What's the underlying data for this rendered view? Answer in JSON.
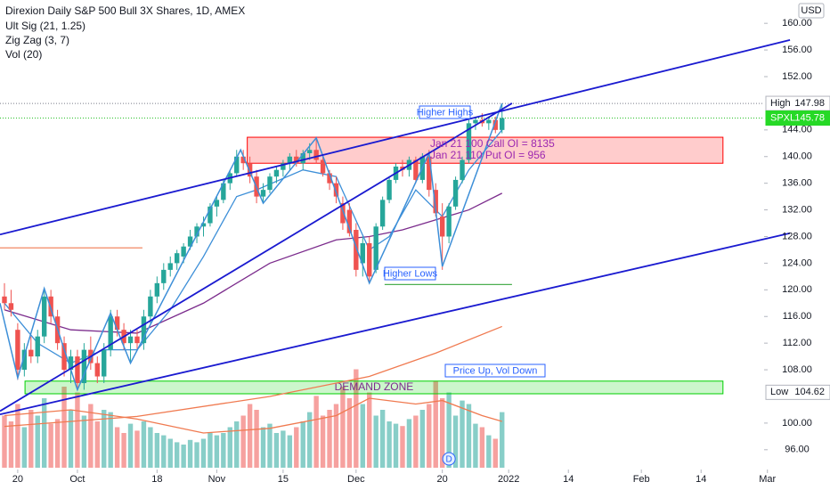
{
  "chart_data": {
    "type": "candlestick",
    "title": "Direxion Daily S&P 500 Bull 3X Shares, 1D, AMEX",
    "indicators": [
      "Ult Sig (21, 1.25)",
      "Zig Zag (3, 7)",
      "Vol (20)"
    ],
    "currency": "USD",
    "up_color": "#26a69a",
    "down_color": "#ef5350",
    "open": [
      119,
      118,
      114,
      108,
      111,
      110,
      113,
      119,
      116,
      112,
      108,
      110,
      106,
      111,
      109,
      107,
      111,
      116,
      114,
      112,
      113,
      112,
      116,
      119,
      121,
      123,
      124,
      125,
      126.5,
      128,
      129.5,
      130,
      132.5,
      133.5,
      136,
      137.5,
      140,
      139,
      137,
      134,
      135,
      137,
      138,
      139,
      140,
      139,
      140.5,
      141,
      139.5,
      137.5,
      136,
      133,
      132,
      129,
      124,
      127,
      123,
      129.5,
      133.5,
      136.5,
      138.5,
      138,
      139.5,
      136.5,
      140,
      135,
      131,
      128,
      132.5,
      136.5,
      139.5,
      145,
      145.5,
      145,
      145.5,
      144
    ],
    "high": [
      121,
      120,
      115,
      112,
      113,
      114,
      120,
      120,
      117,
      113,
      111,
      111,
      112,
      113,
      110,
      112,
      117,
      117,
      115,
      114,
      114,
      117,
      120,
      122,
      124,
      125,
      126,
      127,
      129,
      130,
      131,
      133,
      134,
      136.5,
      138,
      141,
      141,
      140,
      138,
      136,
      137.5,
      138.5,
      139.5,
      140.5,
      141,
      141,
      142,
      143,
      140,
      138,
      137,
      134,
      133,
      130,
      128,
      128,
      130,
      134,
      137,
      139,
      139.5,
      140,
      140,
      140.5,
      141,
      136,
      133,
      133,
      137,
      140,
      145.5,
      146,
      146.5,
      146,
      146,
      147.98
    ],
    "low": [
      117,
      116,
      106.5,
      107,
      109,
      109,
      112,
      115,
      111,
      107,
      106,
      105,
      105,
      108,
      106,
      106,
      110,
      113,
      111,
      109,
      111,
      111,
      115,
      118,
      120,
      122,
      123,
      124,
      126,
      127,
      128,
      129.5,
      131,
      133,
      135,
      137,
      138,
      136,
      133,
      133,
      134.5,
      136,
      137,
      138,
      138.5,
      138,
      139.5,
      139,
      137,
      135,
      133,
      129,
      128,
      122,
      122,
      121,
      122.5,
      129,
      133,
      136,
      137,
      137,
      136,
      136,
      134,
      131,
      123,
      127,
      132,
      136,
      139,
      144,
      144.5,
      144,
      143.5,
      143.5
    ],
    "close": [
      118,
      117,
      108,
      111,
      110,
      113,
      119,
      116,
      112,
      108,
      110,
      106,
      111,
      109,
      107,
      111,
      116,
      114,
      112,
      113,
      112,
      116,
      119,
      121,
      123,
      124,
      125.5,
      126.5,
      128,
      129.5,
      130,
      132.5,
      133.5,
      136,
      137.5,
      140,
      139,
      137,
      134,
      135,
      137,
      138,
      139,
      140,
      139,
      140.5,
      141,
      139.5,
      137.5,
      136,
      134,
      130,
      128.5,
      123,
      127,
      122,
      129.5,
      133.5,
      136.5,
      138.5,
      138,
      139.5,
      136.5,
      140,
      135,
      131.5,
      128,
      132.5,
      136.5,
      139.5,
      145,
      145.5,
      145,
      145.5,
      144,
      145.78
    ],
    "volume": [
      45,
      40,
      55,
      35,
      50,
      45,
      60,
      38,
      42,
      70,
      50,
      65,
      45,
      55,
      40,
      50,
      48,
      35,
      30,
      38,
      32,
      40,
      35,
      30,
      28,
      25,
      22,
      20,
      24,
      22,
      25,
      30,
      28,
      30,
      35,
      40,
      45,
      55,
      50,
      35,
      38,
      30,
      32,
      28,
      35,
      40,
      48,
      62,
      45,
      50,
      55,
      70,
      60,
      85,
      55,
      65,
      45,
      50,
      40,
      38,
      36,
      42,
      45,
      50,
      55,
      75,
      60,
      65,
      45,
      58,
      55,
      38,
      35,
      28,
      25,
      48
    ],
    "vlim": [
      0,
      100
    ],
    "xlim": [
      -0.67,
      114.5
    ],
    "ylim": [
      93.3,
      163.5
    ],
    "yticks": [
      {
        "value": 160,
        "label": "160.00"
      },
      {
        "value": 156,
        "label": "156.00"
      },
      {
        "value": 152,
        "label": "152.00"
      },
      {
        "value": 144,
        "label": "144.00"
      },
      {
        "value": 140,
        "label": "140.00"
      },
      {
        "value": 136,
        "label": "136.00"
      },
      {
        "value": 132,
        "label": "132.00"
      },
      {
        "value": 128,
        "label": "128.00"
      },
      {
        "value": 124,
        "label": "124.00"
      },
      {
        "value": 120,
        "label": "120.00"
      },
      {
        "value": 116,
        "label": "116.00"
      },
      {
        "value": 112,
        "label": "112.00"
      },
      {
        "value": 108,
        "label": "108.00"
      },
      {
        "value": 100,
        "label": "100.00"
      },
      {
        "value": 96,
        "label": "96.00"
      }
    ],
    "xticks": [
      {
        "value": 2,
        "label": "20"
      },
      {
        "value": 11,
        "label": "Oct"
      },
      {
        "value": 23,
        "label": "18"
      },
      {
        "value": 32,
        "label": "Nov"
      },
      {
        "value": 42,
        "label": "15"
      },
      {
        "value": 53,
        "label": "Dec"
      },
      {
        "value": 66,
        "label": "20"
      },
      {
        "value": 76,
        "label": "2022"
      },
      {
        "value": 85,
        "label": "14"
      },
      {
        "value": 96,
        "label": "Feb"
      },
      {
        "value": 105,
        "label": "14"
      },
      {
        "value": 115,
        "label": "Mar"
      }
    ],
    "high_marker": {
      "label": "High",
      "value": 147.98
    },
    "last_marker": {
      "label": "SPXL",
      "value": 145.78
    },
    "low_marker": {
      "label": "Low",
      "value": 104.62
    },
    "trendlines": [
      {
        "color": "#1a1ad0",
        "points": [
          [
            -0.67,
            128.3
          ],
          [
            118.4,
            157.5
          ]
        ]
      },
      {
        "color": "#1a1ad0",
        "points": [
          [
            -0.67,
            101.3
          ],
          [
            118.4,
            128.5
          ]
        ]
      },
      {
        "color": "#1a1ad0",
        "points": [
          [
            -0.67,
            101.8
          ],
          [
            76.5,
            148
          ]
        ]
      }
    ],
    "zigzag": {
      "color": "#3d8fd8",
      "points": [
        [
          -0.67,
          118
        ],
        [
          2,
          106.8
        ],
        [
          6,
          120.2
        ],
        [
          11,
          105
        ],
        [
          16,
          116.5
        ],
        [
          19,
          109
        ],
        [
          35.6,
          141
        ],
        [
          39,
          133
        ],
        [
          47,
          142.8
        ],
        [
          55,
          121
        ],
        [
          64,
          140.5
        ],
        [
          66,
          123.5
        ],
        [
          75,
          147.98
        ]
      ]
    },
    "ma_fast": {
      "color": "#3d8fd8",
      "points": [
        [
          0,
          118
        ],
        [
          5,
          112
        ],
        [
          10,
          109
        ],
        [
          15,
          111
        ],
        [
          20,
          111
        ],
        [
          25,
          117
        ],
        [
          30,
          125
        ],
        [
          35,
          134
        ],
        [
          38,
          135
        ],
        [
          45,
          138
        ],
        [
          50,
          137
        ],
        [
          55,
          126
        ],
        [
          58,
          128
        ],
        [
          62,
          135
        ],
        [
          66,
          131
        ],
        [
          70,
          138
        ],
        [
          75,
          144
        ]
      ]
    },
    "ma_slow": {
      "color": "#7b2b8c",
      "points": [
        [
          0,
          117
        ],
        [
          10,
          114
        ],
        [
          20,
          113.5
        ],
        [
          30,
          118
        ],
        [
          40,
          124
        ],
        [
          50,
          127.5
        ],
        [
          55,
          128
        ],
        [
          60,
          129
        ],
        [
          70,
          132
        ],
        [
          75,
          134.5
        ]
      ]
    },
    "ma_long": {
      "color": "#f07a50",
      "points": [
        [
          0,
          99.5
        ],
        [
          20,
          101
        ],
        [
          40,
          104
        ],
        [
          55,
          107
        ],
        [
          65,
          110.5
        ],
        [
          75,
          114.5
        ]
      ]
    },
    "vol_ma": {
      "color": "#f07a50",
      "points": [
        [
          0,
          45
        ],
        [
          10,
          50
        ],
        [
          20,
          42
        ],
        [
          30,
          30
        ],
        [
          40,
          34
        ],
        [
          50,
          45
        ],
        [
          55,
          60
        ],
        [
          62,
          55
        ],
        [
          66,
          58
        ],
        [
          72,
          45
        ],
        [
          75,
          40
        ]
      ]
    },
    "zones": [
      {
        "color": "#ff0000",
        "from": 36.6,
        "to": 108.3,
        "low": 139.0,
        "high": 142.9
      },
      {
        "color": "#00d000",
        "label": "DEMAND ZONE",
        "from": 3.1,
        "to": 108.3,
        "low": 104.4,
        "high": 106.3
      }
    ],
    "levels": [
      {
        "color": "#f07a50",
        "value": 126.3,
        "from": -0.67,
        "to": 20.8
      },
      {
        "color": "#4caf50",
        "value": 120.8,
        "from": 57.3,
        "to": 76.5
      }
    ],
    "annotations": [
      "Higher Highs",
      "Higher Lows",
      "Price Up, Vol Down"
    ],
    "oi_notes": [
      "Jan 21 100 Call OI = 8135",
      "Jan 21 110 Put OI = 956"
    ],
    "events": [
      {
        "x": 67,
        "label": "D"
      }
    ]
  }
}
